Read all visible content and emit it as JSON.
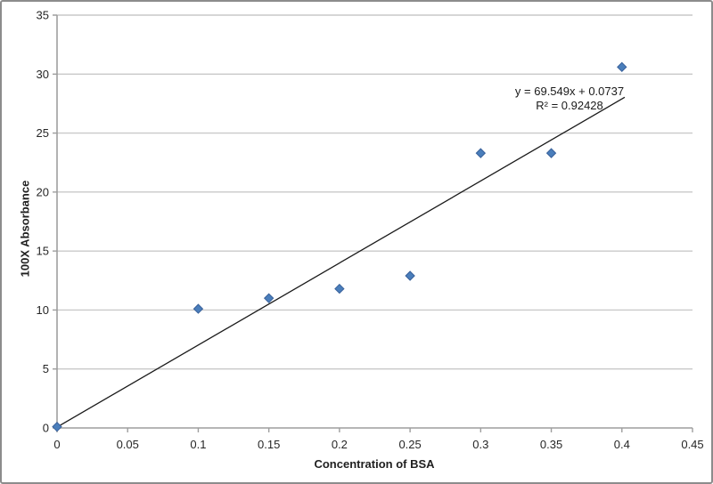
{
  "chart_data": {
    "type": "scatter",
    "title": "",
    "xlabel": "Concentration of BSA",
    "ylabel": "100X Absorbance",
    "xlim": [
      0,
      0.45
    ],
    "ylim": [
      0,
      35
    ],
    "x_ticks": {
      "values": [
        0,
        0.05,
        0.1,
        0.15,
        0.2,
        0.25,
        0.3,
        0.35,
        0.4,
        0.45
      ],
      "labels": [
        "0",
        "0.05",
        "0.1",
        "0.15",
        "0.2",
        "0.25",
        "0.3",
        "0.35",
        "0.4",
        "0.45"
      ]
    },
    "y_ticks": {
      "values": [
        0,
        5,
        10,
        15,
        20,
        25,
        30,
        35
      ],
      "labels": [
        "0",
        "5",
        "10",
        "15",
        "20",
        "25",
        "30",
        "35"
      ]
    },
    "grid": "horizontal-only",
    "legend": "none",
    "series": [
      {
        "marker": "diamond",
        "color": "#4A7EBB",
        "marker_edge": "#38609A",
        "points": [
          {
            "x": 0,
            "y": 0.1
          },
          {
            "x": 0.1,
            "y": 10.1
          },
          {
            "x": 0.15,
            "y": 11.0
          },
          {
            "x": 0.2,
            "y": 11.8
          },
          {
            "x": 0.25,
            "y": 12.9
          },
          {
            "x": 0.3,
            "y": 23.3
          },
          {
            "x": 0.35,
            "y": 23.3
          },
          {
            "x": 0.4,
            "y": 30.6
          }
        ]
      }
    ],
    "trendline": {
      "slope": 69.549,
      "intercept": 0.0737,
      "x_range": [
        0,
        0.402
      ],
      "color": "#1a1a1a",
      "equation_label": "y = 69.549x + 0.0737",
      "r2_label": "R² = 0.92428"
    }
  },
  "colors": {
    "gridline": "#c9c9c9",
    "axis": "#9e9e9e",
    "tick_label_text": "#262626",
    "frame_border": "#8c8c8c",
    "background": "#ffffff"
  }
}
